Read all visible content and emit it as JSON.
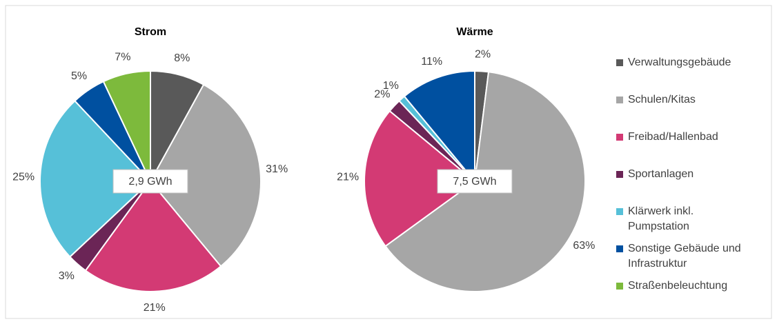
{
  "chart_data": [
    {
      "type": "pie",
      "title": "Strom",
      "center_label": "2,9 GWh",
      "categories": [
        "Verwaltungsgebäude",
        "Schulen/Kitas",
        "Freibad/Hallenbad",
        "Sportanlagen",
        "Klärwerk inkl. Pumpstation",
        "Sonstige Gebäude und Infrastruktur",
        "Straßenbeleuchtung"
      ],
      "values": [
        8,
        31,
        21,
        3,
        25,
        5,
        7
      ],
      "value_labels": [
        "8%",
        "31%",
        "21%",
        "3%",
        "25%",
        "5%",
        "7%"
      ],
      "colors": [
        "#595959",
        "#a6a6a6",
        "#d33a74",
        "#6b2556",
        "#56c0d8",
        "#0050a0",
        "#7dba3c"
      ]
    },
    {
      "type": "pie",
      "title": "Wärme",
      "center_label": "7,5 GWh",
      "categories": [
        "Verwaltungsgebäude",
        "Schulen/Kitas",
        "Freibad/Hallenbad",
        "Sportanlagen",
        "Klärwerk inkl. Pumpstation",
        "Sonstige Gebäude und Infrastruktur"
      ],
      "values": [
        2,
        63,
        21,
        2,
        1,
        11
      ],
      "value_labels": [
        "2%",
        "63%",
        "21%",
        "2%",
        "1%",
        "11%"
      ],
      "colors": [
        "#595959",
        "#a6a6a6",
        "#d33a74",
        "#6b2556",
        "#56c0d8",
        "#0050a0"
      ]
    }
  ]
}
